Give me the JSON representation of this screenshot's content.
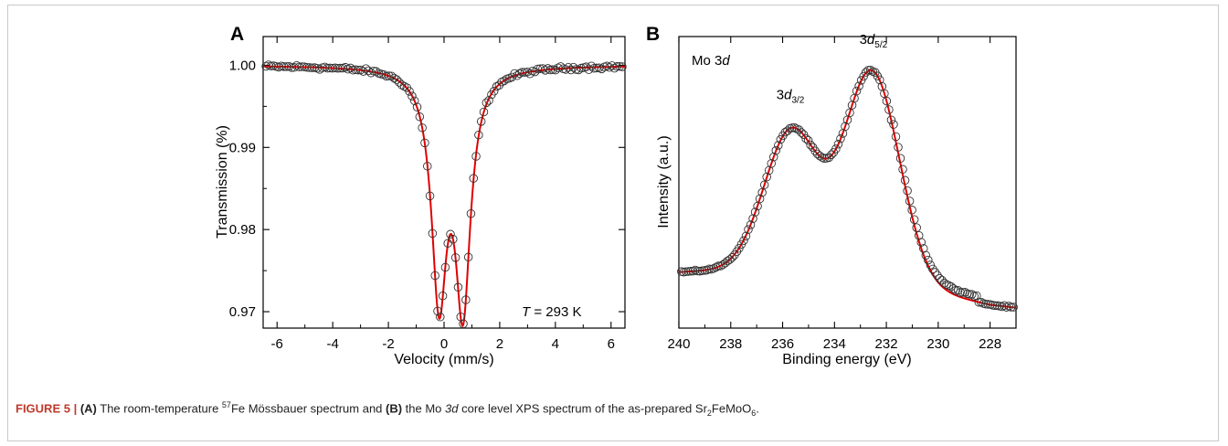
{
  "caption": {
    "figure_label": "FIGURE 5 |",
    "part_a": "(A)",
    "text_1": " The room-temperature ",
    "iso_sup": "57",
    "text_2": "Fe Mössbauer spectrum and ",
    "part_b": "(B)",
    "text_3": " the Mo ",
    "text_3_it": "3d",
    "text_4": " core level XPS spectrum of the as-prepared Sr",
    "sub_1": "2",
    "text_5": "FeMoO",
    "sub_2": "6",
    "text_6": "."
  },
  "colors": {
    "fit": "#e00000",
    "marker": "#333333",
    "axis": "#000000"
  },
  "chart_data": [
    {
      "panel": "A",
      "type": "scatter",
      "xlabel": "Velocity (mm/s)",
      "ylabel": "Transmission (%)",
      "xlim": [
        -6.5,
        6.5
      ],
      "ylim": [
        0.968,
        1.0035
      ],
      "xticks": [
        -6,
        -4,
        -2,
        0,
        2,
        4,
        6
      ],
      "xtick_labels": [
        "-6",
        "-4",
        "-2",
        "0",
        "2",
        "4",
        "6"
      ],
      "yticks": [
        0.97,
        0.98,
        0.99,
        1.0
      ],
      "ytick_labels": [
        "0.97",
        "0.98",
        "0.99",
        "1.00"
      ],
      "annotation": {
        "italic": "T",
        "text": " = 293 K"
      },
      "model": {
        "baseline": 1.0,
        "peaks": [
          {
            "center": -0.18,
            "depth": 0.0272,
            "hwhm": 0.33
          },
          {
            "center": 0.68,
            "depth": 0.0282,
            "hwhm": 0.33
          }
        ]
      },
      "x_range": [
        -6.4,
        6.4
      ],
      "n_points": 140,
      "noise": 0.00035
    },
    {
      "panel": "B",
      "type": "scatter",
      "xlabel": "Binding energy (eV)",
      "ylabel": "Intensity (a.u.)",
      "xlim": [
        240,
        227
      ],
      "ylim": [
        0,
        1
      ],
      "xticks": [
        240,
        238,
        236,
        234,
        232,
        230,
        228
      ],
      "xtick_labels": [
        "240",
        "238",
        "236",
        "234",
        "232",
        "230",
        "228"
      ],
      "yticks": [],
      "annotation": {
        "text": "Mo 3",
        "italic": "d"
      },
      "peak_labels": [
        {
          "x": 235.7,
          "y": 0.785,
          "base": "3",
          "italic": "d",
          "sub": "3/2"
        },
        {
          "x": 232.5,
          "y": 0.975,
          "base": "3",
          "italic": "d",
          "sub": "5/2"
        }
      ],
      "model": {
        "background": [
          {
            "x": 240,
            "y": 0.192
          },
          {
            "x": 238,
            "y": 0.2
          },
          {
            "x": 236,
            "y": 0.21
          },
          {
            "x": 234,
            "y": 0.2
          },
          {
            "x": 232,
            "y": 0.17
          },
          {
            "x": 230,
            "y": 0.12
          },
          {
            "x": 228,
            "y": 0.08
          },
          {
            "x": 227,
            "y": 0.07
          }
        ],
        "peaks": [
          {
            "center": 235.65,
            "height": 0.47,
            "width": 1.05
          },
          {
            "center": 232.55,
            "height": 0.7,
            "width": 1.05
          }
        ]
      },
      "x_range": [
        239.9,
        227.1
      ],
      "n_points": 145,
      "noise": 0.004
    }
  ]
}
